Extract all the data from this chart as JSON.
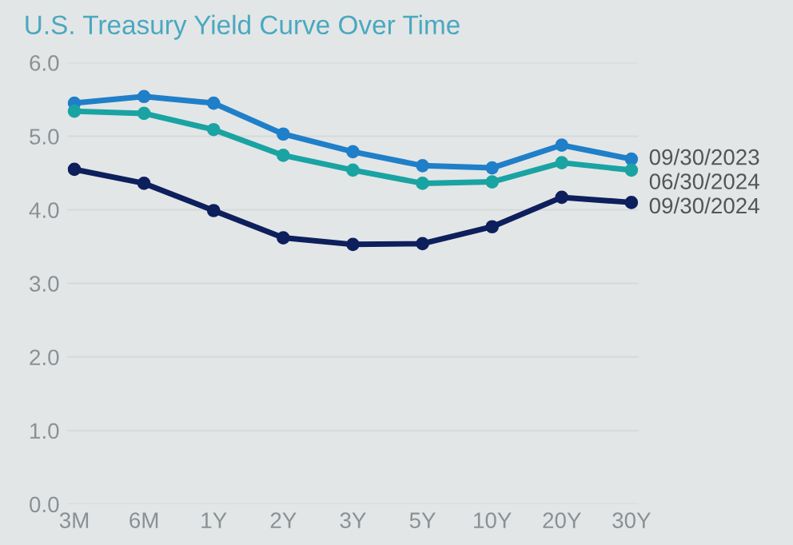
{
  "chart_data": {
    "type": "line",
    "title": "U.S. Treasury Yield Curve Over Time",
    "categories": [
      "3M",
      "6M",
      "1Y",
      "2Y",
      "3Y",
      "5Y",
      "10Y",
      "20Y",
      "30Y"
    ],
    "series": [
      {
        "name": "09/30/2023",
        "color": "#1f7fc9",
        "values": [
          5.45,
          5.54,
          5.45,
          5.03,
          4.79,
          4.6,
          4.57,
          4.88,
          4.69
        ]
      },
      {
        "name": "06/30/2024",
        "color": "#1aa3a3",
        "values": [
          5.34,
          5.31,
          5.09,
          4.74,
          4.54,
          4.36,
          4.38,
          4.64,
          4.54
        ]
      },
      {
        "name": "09/30/2024",
        "color": "#0d1f5c",
        "values": [
          4.55,
          4.36,
          3.99,
          3.62,
          3.53,
          3.54,
          3.77,
          4.17,
          4.1
        ]
      }
    ],
    "ylim": [
      0,
      6
    ],
    "yticks": [
      {
        "value": 0,
        "label": "0.0"
      },
      {
        "value": 1,
        "label": "1.0"
      },
      {
        "value": 2,
        "label": "2.0"
      },
      {
        "value": 3,
        "label": "3.0"
      },
      {
        "value": 4,
        "label": "4.0"
      },
      {
        "value": 5,
        "label": "5.0"
      },
      {
        "value": 6,
        "label": "6.0"
      }
    ],
    "grid": "y",
    "marker": "circle",
    "line_style": "solid"
  }
}
